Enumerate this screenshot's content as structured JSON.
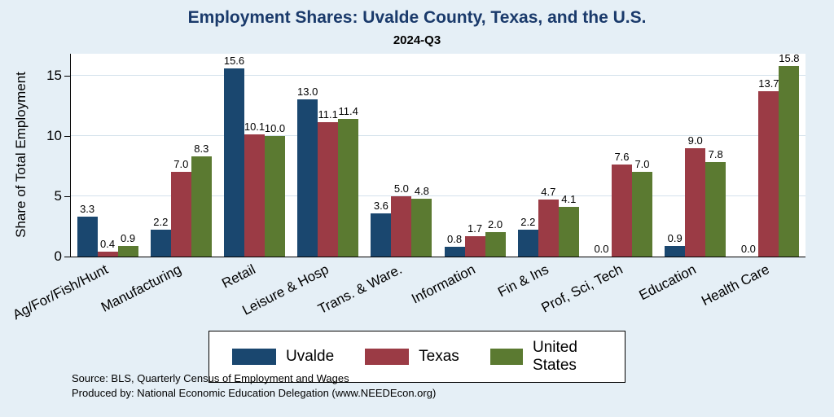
{
  "chart_data": {
    "type": "bar",
    "title": "Employment Shares: Uvalde County, Texas, and the U.S.",
    "subtitle": "2024-Q3",
    "ylabel": "Share of Total Employment",
    "categories": [
      "Ag/For/Fish/Hunt",
      "Manufacturing",
      "Retail",
      "Leisure & Hosp",
      "Trans. & Ware.",
      "Information",
      "Fin & Ins",
      "Prof, Sci, Tech",
      "Education",
      "Health Care"
    ],
    "series": [
      {
        "name": "Uvalde",
        "color": "#1A476F",
        "values": [
          3.3,
          2.2,
          15.6,
          13.0,
          3.6,
          0.8,
          2.2,
          0.0,
          0.9,
          0.0
        ]
      },
      {
        "name": "Texas",
        "color": "#9B3B45",
        "values": [
          0.4,
          7.0,
          10.1,
          11.1,
          5.0,
          1.7,
          4.7,
          7.6,
          9.0,
          13.7
        ]
      },
      {
        "name": "United States",
        "color": "#5B7A31",
        "values": [
          0.9,
          8.3,
          10.0,
          11.4,
          4.8,
          2.0,
          4.1,
          7.0,
          7.8,
          15.8
        ]
      }
    ],
    "yticks": [
      0,
      5,
      10,
      15
    ],
    "ylim": [
      0,
      16.8
    ],
    "grid": true,
    "legend_position": "bottom",
    "notes": [
      "Source: BLS, Quarterly Census of Employment and Wages",
      "Produced by: National Economic Education Delegation (www.NEEDEcon.org)"
    ],
    "colors": {
      "background": "#E5EFF6",
      "plot_background": "#FFFFFF",
      "title": "#1A3A6B",
      "gridline": "#D4E2EC"
    }
  }
}
